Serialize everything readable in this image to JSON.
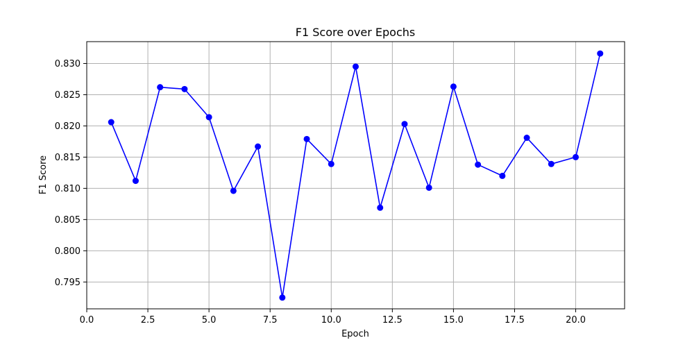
{
  "chart_data": {
    "type": "line",
    "title": "F1 Score over Epochs",
    "xlabel": "Epoch",
    "ylabel": "F1 Score",
    "xlim": [
      0.0,
      22.0
    ],
    "ylim": [
      0.7907,
      0.8335
    ],
    "xticks": [
      "0.0",
      "2.5",
      "5.0",
      "7.5",
      "10.0",
      "12.5",
      "15.0",
      "17.5",
      "20.0"
    ],
    "yticks": [
      "0.795",
      "0.800",
      "0.805",
      "0.810",
      "0.815",
      "0.820",
      "0.825",
      "0.830"
    ],
    "grid": true,
    "legend": "none",
    "series": [
      {
        "color": "#0000ff",
        "marker": "circle",
        "x": [
          1,
          2,
          3,
          4,
          5,
          6,
          7,
          8,
          9,
          10,
          11,
          12,
          13,
          14,
          15,
          16,
          17,
          18,
          19,
          20,
          21
        ],
        "y": [
          0.8206,
          0.8112,
          0.8262,
          0.8259,
          0.8214,
          0.8096,
          0.8167,
          0.7925,
          0.8179,
          0.8139,
          0.8295,
          0.8069,
          0.8203,
          0.8101,
          0.8263,
          0.8138,
          0.812,
          0.8181,
          0.8139,
          0.815,
          0.8316
        ]
      }
    ]
  }
}
